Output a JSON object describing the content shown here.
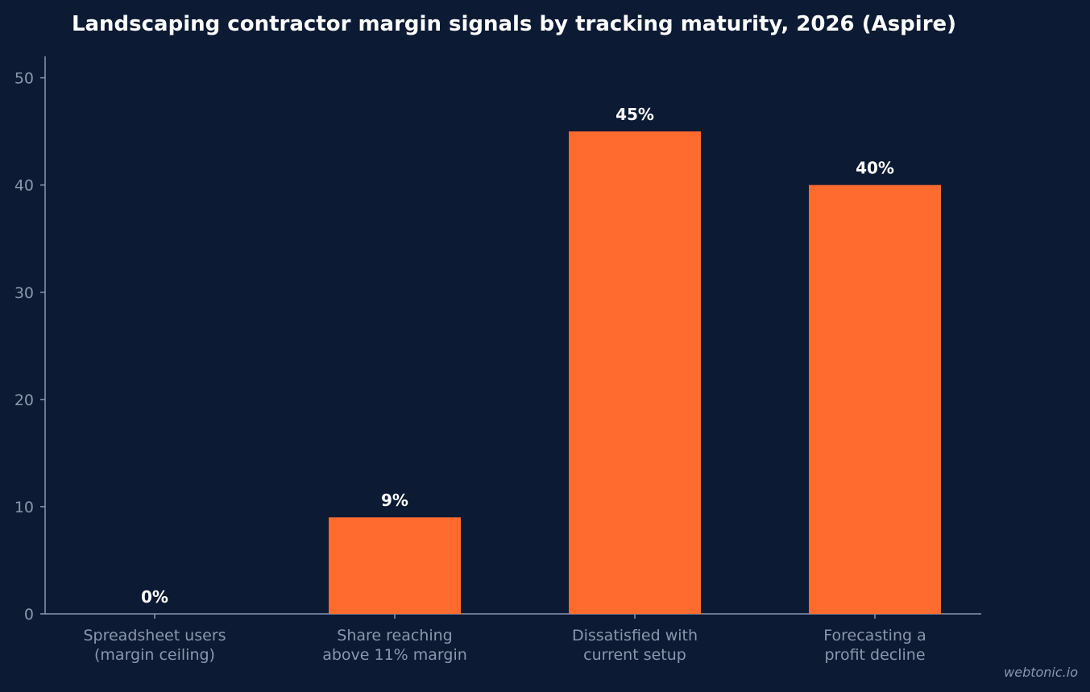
{
  "chart_data": {
    "type": "bar",
    "title": "Landscaping contractor margin signals by tracking maturity, 2026 (Aspire)",
    "categories": [
      [
        "Spreadsheet users",
        "(margin ceiling)"
      ],
      [
        "Share reaching",
        "above 11% margin"
      ],
      [
        "Dissatisfied with",
        "current setup"
      ],
      [
        "Forecasting a",
        "profit decline"
      ]
    ],
    "values": [
      0,
      9,
      45,
      40
    ],
    "value_labels": [
      "0%",
      "9%",
      "45%",
      "40%"
    ],
    "yticks": [
      "0",
      "10",
      "20",
      "30",
      "40",
      "50"
    ],
    "ylim": [
      0,
      52
    ],
    "xlabel": "",
    "ylabel": "",
    "grid": false,
    "bar_color": "#ff6b2e",
    "background_color": "#0c1a33"
  },
  "watermark": "webtonic.io"
}
